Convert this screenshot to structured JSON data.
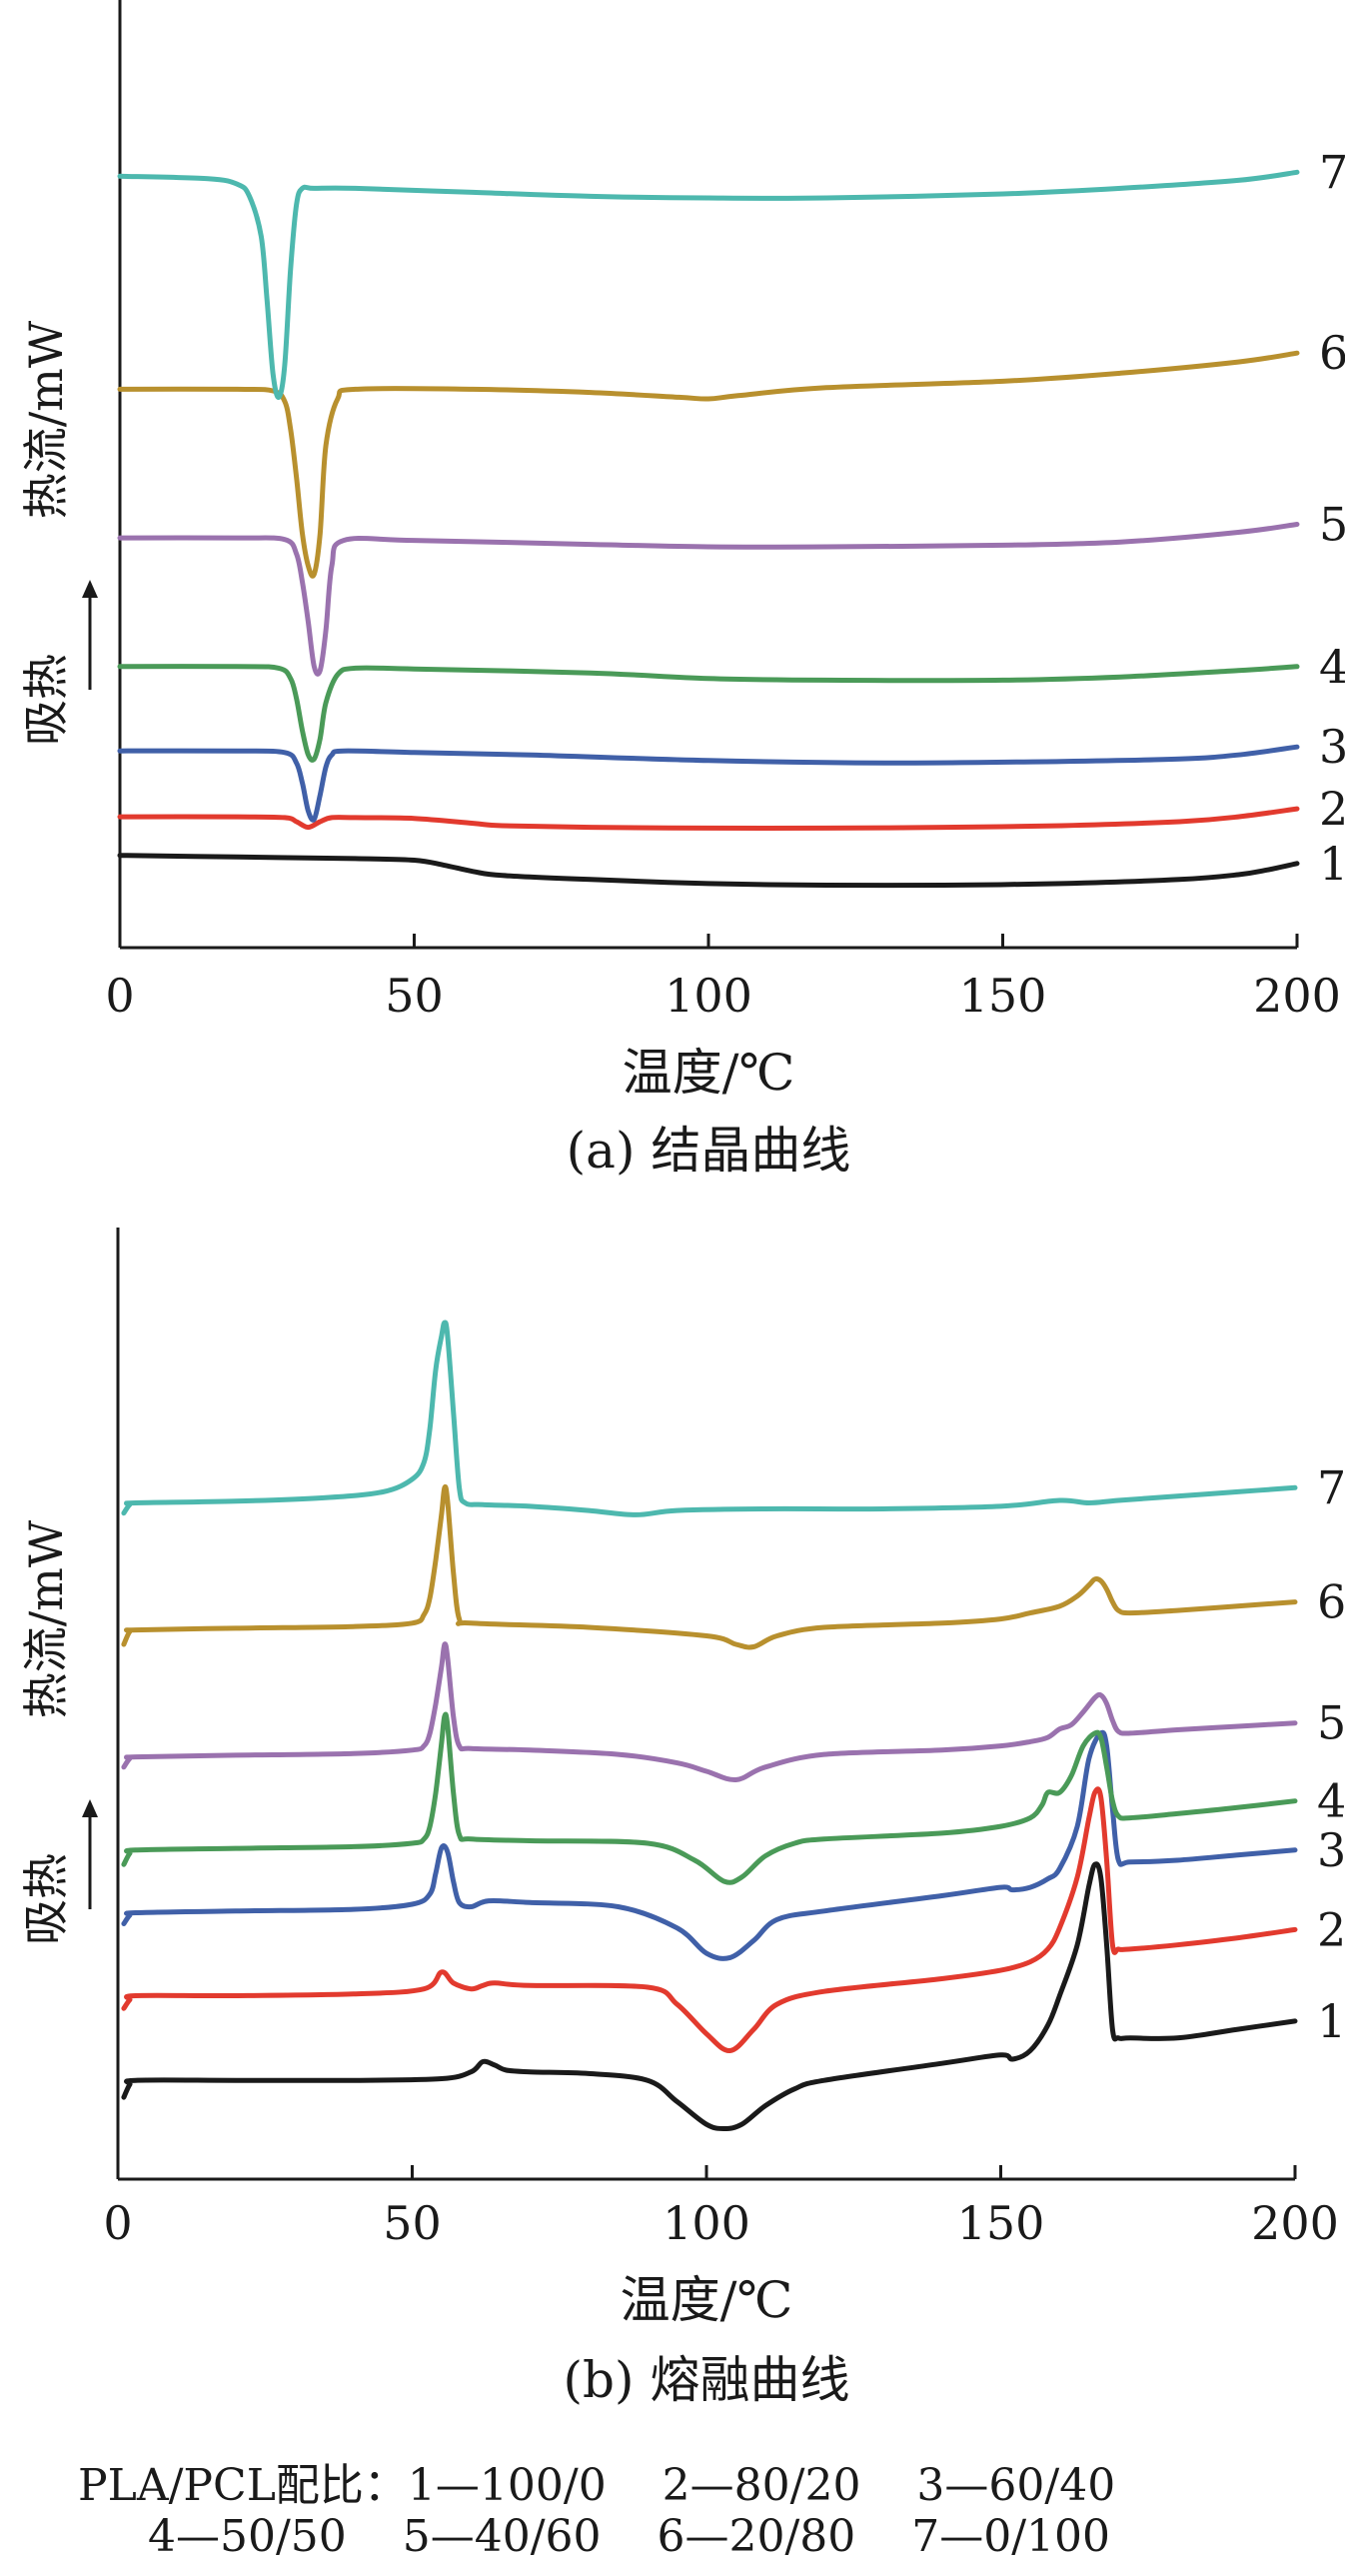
{
  "chart_data": [
    {
      "type": "line",
      "caption": "(a) 结晶曲线",
      "xlabel": "温度/℃",
      "ylabel_main": "热流/mW",
      "ylabel_arrow": "吸热",
      "xlim": [
        0,
        200
      ],
      "xticks": [
        0,
        50,
        100,
        150,
        200
      ],
      "ylim": [
        0,
        1
      ],
      "yticks": [],
      "series": [
        {
          "name": "1",
          "color": "#1a1a1a",
          "x": [
            0,
            20,
            40,
            50,
            55,
            60,
            65,
            80,
            100,
            120,
            140,
            160,
            180,
            190,
            195,
            200
          ],
          "y": [
            0.07,
            0.068,
            0.066,
            0.064,
            0.058,
            0.05,
            0.045,
            0.04,
            0.035,
            0.033,
            0.033,
            0.035,
            0.04,
            0.046,
            0.052,
            0.06
          ]
        },
        {
          "name": "2",
          "color": "#e23a2e",
          "x": [
            0,
            20,
            28,
            30,
            32,
            34,
            36,
            40,
            50,
            60,
            65,
            80,
            100,
            120,
            140,
            160,
            180,
            190,
            200
          ],
          "y": [
            0.118,
            0.118,
            0.117,
            0.112,
            0.105,
            0.112,
            0.117,
            0.117,
            0.116,
            0.11,
            0.107,
            0.105,
            0.104,
            0.104,
            0.105,
            0.107,
            0.112,
            0.118,
            0.128
          ]
        },
        {
          "name": "3",
          "color": "#4060a8",
          "x": [
            0,
            20,
            28,
            30,
            31,
            32,
            33,
            34,
            35,
            36,
            38,
            50,
            70,
            100,
            130,
            160,
            180,
            190,
            200
          ],
          "y": [
            0.2,
            0.2,
            0.198,
            0.185,
            0.16,
            0.125,
            0.115,
            0.145,
            0.18,
            0.195,
            0.2,
            0.198,
            0.195,
            0.188,
            0.185,
            0.187,
            0.19,
            0.195,
            0.205
          ]
        },
        {
          "name": "4",
          "color": "#4a9a58",
          "x": [
            0,
            20,
            27,
            29,
            30,
            31,
            32,
            33,
            34,
            35,
            37,
            40,
            50,
            80,
            100,
            120,
            150,
            170,
            190,
            200
          ],
          "y": [
            0.305,
            0.305,
            0.303,
            0.29,
            0.265,
            0.225,
            0.195,
            0.19,
            0.215,
            0.26,
            0.295,
            0.303,
            0.302,
            0.297,
            0.29,
            0.288,
            0.288,
            0.292,
            0.3,
            0.305
          ]
        },
        {
          "name": "5",
          "color": "#9a72ae",
          "x": [
            0,
            20,
            28,
            30,
            31,
            32,
            33,
            34,
            35,
            36,
            38,
            50,
            80,
            100,
            120,
            150,
            170,
            190,
            200
          ],
          "y": [
            0.465,
            0.465,
            0.463,
            0.445,
            0.41,
            0.36,
            0.305,
            0.3,
            0.35,
            0.43,
            0.462,
            0.462,
            0.457,
            0.454,
            0.454,
            0.456,
            0.46,
            0.472,
            0.482
          ]
        },
        {
          "name": "6",
          "color": "#b8902e",
          "x": [
            0,
            20,
            26,
            28,
            29,
            30,
            31,
            32,
            33,
            34,
            35,
            37,
            40,
            60,
            80,
            95,
            100,
            105,
            120,
            150,
            170,
            190,
            200
          ],
          "y": [
            0.65,
            0.65,
            0.648,
            0.635,
            0.6,
            0.54,
            0.47,
            0.43,
            0.42,
            0.47,
            0.58,
            0.638,
            0.65,
            0.65,
            0.646,
            0.64,
            0.638,
            0.642,
            0.652,
            0.66,
            0.67,
            0.684,
            0.695
          ]
        },
        {
          "name": "7",
          "color": "#4db8ae",
          "x": [
            0,
            15,
            20,
            22,
            24,
            25,
            26,
            27,
            28,
            29,
            30,
            31,
            33,
            40,
            60,
            80,
            100,
            120,
            150,
            170,
            190,
            200
          ],
          "y": [
            0.915,
            0.912,
            0.905,
            0.89,
            0.84,
            0.76,
            0.67,
            0.64,
            0.68,
            0.8,
            0.88,
            0.9,
            0.9,
            0.9,
            0.895,
            0.89,
            0.888,
            0.888,
            0.893,
            0.9,
            0.91,
            0.92
          ]
        }
      ]
    },
    {
      "type": "line",
      "caption": "(b) 熔融曲线",
      "xlabel": "温度/℃",
      "ylabel_main": "热流/mW",
      "ylabel_arrow": "吸热",
      "xlim": [
        0,
        200
      ],
      "xticks": [
        0,
        50,
        100,
        150,
        200
      ],
      "ylim": [
        0,
        1
      ],
      "yticks": [],
      "series": [
        {
          "name": "1",
          "color": "#1a1a1a",
          "x": [
            1,
            2,
            3,
            20,
            40,
            55,
            60,
            62,
            64,
            66,
            70,
            80,
            90,
            95,
            100,
            103,
            106,
            110,
            115,
            120,
            140,
            150,
            152,
            155,
            158,
            160,
            163,
            165,
            166,
            167,
            168,
            169,
            170,
            172,
            180,
            190,
            200
          ],
          "y": [
            0.04,
            0.055,
            0.06,
            0.06,
            0.06,
            0.062,
            0.07,
            0.082,
            0.078,
            0.072,
            0.07,
            0.068,
            0.06,
            0.035,
            0.008,
            0.003,
            0.008,
            0.03,
            0.05,
            0.06,
            0.08,
            0.09,
            0.085,
            0.095,
            0.125,
            0.16,
            0.22,
            0.29,
            0.315,
            0.3,
            0.22,
            0.12,
            0.11,
            0.11,
            0.11,
            0.12,
            0.13
          ]
        },
        {
          "name": "2",
          "color": "#e23a2e",
          "x": [
            1,
            2,
            3,
            20,
            40,
            52,
            55,
            57,
            60,
            62,
            64,
            70,
            90,
            95,
            100,
            104,
            108,
            112,
            120,
            140,
            150,
            155,
            158,
            160,
            163,
            165,
            166,
            167,
            168,
            169,
            170,
            172,
            180,
            190,
            200
          ],
          "y": [
            0.145,
            0.155,
            0.16,
            0.16,
            0.162,
            0.168,
            0.188,
            0.175,
            0.168,
            0.172,
            0.175,
            0.172,
            0.17,
            0.15,
            0.115,
            0.095,
            0.12,
            0.15,
            0.165,
            0.18,
            0.19,
            0.2,
            0.215,
            0.24,
            0.3,
            0.37,
            0.4,
            0.395,
            0.32,
            0.22,
            0.215,
            0.215,
            0.22,
            0.228,
            0.238
          ]
        },
        {
          "name": "3",
          "color": "#4060a8",
          "x": [
            1,
            2,
            3,
            20,
            40,
            50,
            53,
            54,
            55,
            56,
            57,
            58,
            60,
            63,
            70,
            85,
            95,
            100,
            104,
            108,
            112,
            120,
            140,
            150,
            152,
            155,
            158,
            160,
            163,
            165,
            167,
            168,
            169,
            170,
            172,
            180,
            190,
            200
          ],
          "y": [
            0.245,
            0.255,
            0.258,
            0.26,
            0.262,
            0.268,
            0.28,
            0.305,
            0.335,
            0.33,
            0.295,
            0.27,
            0.265,
            0.272,
            0.27,
            0.265,
            0.24,
            0.21,
            0.205,
            0.225,
            0.25,
            0.26,
            0.278,
            0.288,
            0.285,
            0.288,
            0.298,
            0.31,
            0.36,
            0.44,
            0.47,
            0.455,
            0.38,
            0.32,
            0.318,
            0.32,
            0.326,
            0.332
          ]
        },
        {
          "name": "4",
          "color": "#4a9a58",
          "x": [
            1,
            2,
            3,
            20,
            40,
            50,
            52,
            53,
            54,
            55,
            55.5,
            56,
            57,
            58,
            60,
            70,
            90,
            98,
            103,
            106,
            110,
            115,
            120,
            140,
            150,
            155,
            157,
            158,
            160,
            162,
            164,
            166,
            167,
            168,
            169,
            170,
            172,
            180,
            190,
            200
          ],
          "y": [
            0.315,
            0.328,
            0.332,
            0.334,
            0.336,
            0.34,
            0.345,
            0.36,
            0.4,
            0.46,
            0.49,
            0.48,
            0.4,
            0.35,
            0.345,
            0.343,
            0.34,
            0.32,
            0.295,
            0.3,
            0.325,
            0.34,
            0.345,
            0.352,
            0.36,
            0.37,
            0.385,
            0.4,
            0.4,
            0.42,
            0.455,
            0.47,
            0.465,
            0.43,
            0.39,
            0.372,
            0.37,
            0.375,
            0.382,
            0.39
          ]
        },
        {
          "name": "5",
          "color": "#9a72ae",
          "x": [
            1,
            2,
            3,
            20,
            40,
            50,
            52,
            53,
            54,
            55,
            55.5,
            56,
            57,
            58,
            60,
            70,
            85,
            95,
            100,
            105,
            110,
            120,
            140,
            150,
            155,
            158,
            160,
            162,
            164,
            166,
            167,
            168,
            169,
            170,
            172,
            180,
            190,
            200
          ],
          "y": [
            0.43,
            0.44,
            0.442,
            0.444,
            0.446,
            0.45,
            0.455,
            0.47,
            0.505,
            0.55,
            0.575,
            0.56,
            0.49,
            0.455,
            0.452,
            0.45,
            0.445,
            0.435,
            0.425,
            0.415,
            0.43,
            0.445,
            0.45,
            0.455,
            0.46,
            0.465,
            0.475,
            0.48,
            0.495,
            0.512,
            0.515,
            0.505,
            0.485,
            0.472,
            0.47,
            0.474,
            0.478,
            0.482
          ]
        },
        {
          "name": "6",
          "color": "#b8902e",
          "x": [
            1,
            2,
            3,
            20,
            40,
            50,
            52,
            53,
            54,
            55,
            55.5,
            56,
            57,
            58,
            60,
            80,
            100,
            105,
            108,
            112,
            120,
            140,
            150,
            155,
            160,
            163,
            165,
            166,
            167,
            168,
            169,
            170,
            172,
            180,
            190,
            200
          ],
          "y": [
            0.575,
            0.59,
            0.592,
            0.594,
            0.596,
            0.6,
            0.61,
            0.63,
            0.675,
            0.73,
            0.76,
            0.745,
            0.66,
            0.605,
            0.6,
            0.595,
            0.585,
            0.575,
            0.572,
            0.585,
            0.595,
            0.6,
            0.605,
            0.612,
            0.62,
            0.632,
            0.645,
            0.652,
            0.65,
            0.64,
            0.625,
            0.615,
            0.612,
            0.615,
            0.62,
            0.625
          ]
        },
        {
          "name": "7",
          "color": "#4db8ae",
          "x": [
            1,
            2,
            3,
            20,
            35,
            45,
            50,
            52,
            53,
            54,
            55,
            55.5,
            56,
            57,
            58,
            59,
            62,
            70,
            80,
            88,
            95,
            110,
            130,
            150,
            160,
            165,
            170,
            180,
            190,
            200
          ],
          "y": [
            0.73,
            0.74,
            0.742,
            0.744,
            0.748,
            0.755,
            0.77,
            0.79,
            0.83,
            0.9,
            0.94,
            0.955,
            0.94,
            0.85,
            0.76,
            0.742,
            0.74,
            0.738,
            0.733,
            0.728,
            0.733,
            0.735,
            0.735,
            0.738,
            0.745,
            0.742,
            0.745,
            0.75,
            0.755,
            0.76
          ]
        }
      ]
    }
  ],
  "legend": {
    "line1": "PLA/PCL配比：1—100/0    2—80/20    3—60/40",
    "line2": "4—50/50    5—40/60    6—20/80    7—0/100"
  }
}
